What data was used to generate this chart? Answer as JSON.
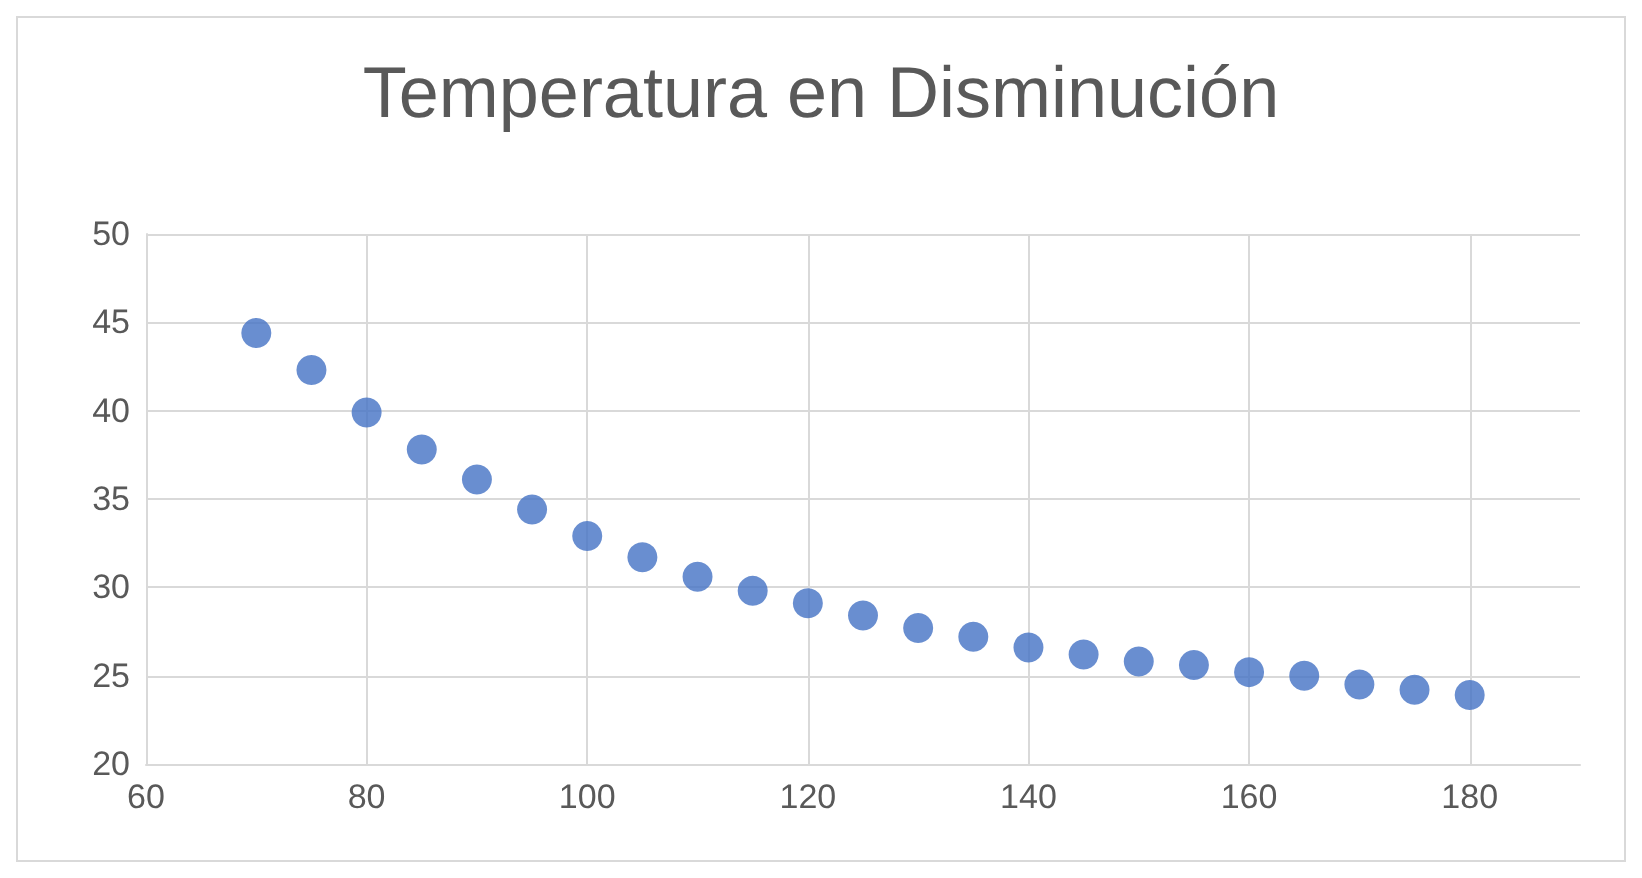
{
  "chart_data": {
    "type": "scatter",
    "title": "Temperatura en Disminución",
    "x": [
      70,
      75,
      80,
      85,
      90,
      95,
      100,
      105,
      110,
      115,
      120,
      125,
      130,
      135,
      140,
      145,
      150,
      155,
      160,
      165,
      170,
      175,
      180
    ],
    "series": [
      {
        "color": "#4472c4",
        "values": [
          44.4,
          42.3,
          39.9,
          37.8,
          36.1,
          34.4,
          32.9,
          31.7,
          30.6,
          29.8,
          29.1,
          28.4,
          27.7,
          27.2,
          26.6,
          26.2,
          25.8,
          25.6,
          25.2,
          25.0,
          24.5,
          24.2,
          23.9
        ]
      }
    ],
    "xlim": [
      60,
      190
    ],
    "xticks": [
      60,
      80,
      100,
      120,
      140,
      160,
      180
    ],
    "ylim": [
      20,
      50
    ],
    "yticks": [
      20,
      25,
      30,
      35,
      40,
      45,
      50
    ],
    "grid": true,
    "marker": "circle"
  }
}
